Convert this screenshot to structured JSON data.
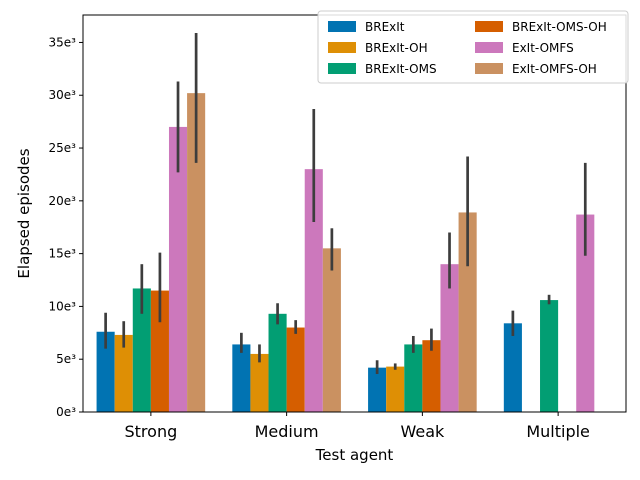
{
  "chart_data": {
    "type": "bar",
    "xlabel": "Test agent",
    "ylabel": "Elapsed episodes",
    "categories": [
      "Strong",
      "Medium",
      "Weak",
      "Multiple"
    ],
    "ylim": [
      0,
      37.6
    ],
    "yticks": [
      0,
      5,
      10,
      15,
      20,
      25,
      30,
      35
    ],
    "ytick_labels": [
      "0e³",
      "5e³",
      "10e³",
      "15e³",
      "20e³",
      "25e³",
      "30e³",
      "35e³"
    ],
    "legend_position": "top-right",
    "legend_columns": 2,
    "series": [
      {
        "name": "BRExIt",
        "color": "#0173b2",
        "values": [
          7.6,
          6.4,
          4.2,
          8.4
        ],
        "err_low": [
          6.0,
          5.6,
          3.6,
          7.2
        ],
        "err_high": [
          9.4,
          7.5,
          4.9,
          9.6
        ]
      },
      {
        "name": "BRExIt-OH",
        "color": "#de8f05",
        "values": [
          7.3,
          5.5,
          4.3,
          null
        ],
        "err_low": [
          6.1,
          4.7,
          4.0,
          null
        ],
        "err_high": [
          8.6,
          6.4,
          4.6,
          null
        ]
      },
      {
        "name": "BRExIt-OMS",
        "color": "#029e73",
        "values": [
          11.7,
          9.3,
          6.4,
          10.6
        ],
        "err_low": [
          9.3,
          8.3,
          5.6,
          10.2
        ],
        "err_high": [
          14.0,
          10.3,
          7.2,
          11.1
        ]
      },
      {
        "name": "BRExIt-OMS-OH",
        "color": "#d55e00",
        "values": [
          11.5,
          8.0,
          6.8,
          null
        ],
        "err_low": [
          8.5,
          7.4,
          5.8,
          null
        ],
        "err_high": [
          15.1,
          8.7,
          7.9,
          null
        ]
      },
      {
        "name": "ExIt-OMFS",
        "color": "#cc78bc",
        "values": [
          27.0,
          23.0,
          14.0,
          18.7
        ],
        "err_low": [
          22.7,
          18.0,
          11.7,
          14.8
        ],
        "err_high": [
          31.3,
          28.7,
          17.0,
          23.6
        ]
      },
      {
        "name": "ExIt-OMFS-OH",
        "color": "#ca9161",
        "values": [
          30.2,
          15.5,
          18.9,
          null
        ],
        "err_low": [
          23.6,
          13.4,
          13.8,
          null
        ],
        "err_high": [
          35.9,
          17.4,
          24.2,
          null
        ]
      }
    ]
  }
}
